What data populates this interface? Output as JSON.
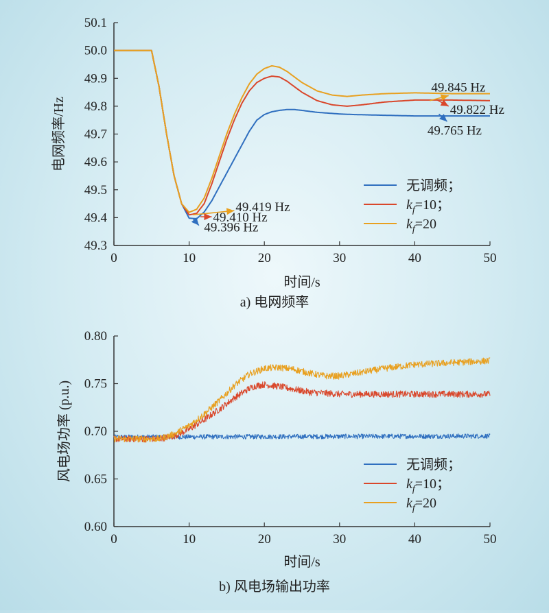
{
  "colors": {
    "no_reg": "#2f6fbf",
    "kf10": "#d9472b",
    "kf20": "#e8a020",
    "axis": "#333333"
  },
  "chart_data": [
    {
      "type": "line",
      "caption": "a) 电网频率",
      "xlabel": "时间/s",
      "ylabel": "电网频率/Hz",
      "xlim": [
        0,
        50
      ],
      "ylim": [
        49.3,
        50.1
      ],
      "xticks": [
        "0",
        "10",
        "20",
        "30",
        "40",
        "50"
      ],
      "yticks": [
        "49.3",
        "49.4",
        "49.5",
        "49.6",
        "49.7",
        "49.8",
        "49.9",
        "50.0",
        "50.1"
      ],
      "legend": "bottom-right",
      "series": [
        {
          "name": "无调频;",
          "legend_label": "无调频；",
          "color": "#2f6fbf",
          "x": [
            0,
            5,
            6,
            7,
            8,
            9,
            10,
            11,
            12,
            13,
            14,
            15,
            16,
            17,
            18,
            19,
            20,
            21,
            22,
            23,
            24,
            25,
            27,
            30,
            32,
            35,
            40,
            45,
            50
          ],
          "y": [
            50.0,
            50.0,
            49.87,
            49.7,
            49.55,
            49.45,
            49.398,
            49.396,
            49.42,
            49.46,
            49.51,
            49.56,
            49.61,
            49.66,
            49.71,
            49.75,
            49.77,
            49.78,
            49.785,
            49.788,
            49.788,
            49.785,
            49.778,
            49.772,
            49.77,
            49.768,
            49.765,
            49.765,
            49.765
          ]
        },
        {
          "name": "kf=10",
          "legend_label": "=10；",
          "color": "#d9472b",
          "x": [
            0,
            5,
            6,
            7,
            8,
            9,
            10,
            11,
            12,
            13,
            14,
            15,
            16,
            17,
            18,
            19,
            20,
            21,
            22,
            23,
            24,
            25,
            27,
            29,
            31,
            33,
            36,
            40,
            45,
            50
          ],
          "y": [
            50.0,
            50.0,
            49.87,
            49.7,
            49.55,
            49.45,
            49.41,
            49.415,
            49.45,
            49.52,
            49.6,
            49.68,
            49.75,
            49.81,
            49.855,
            49.885,
            49.9,
            49.908,
            49.905,
            49.89,
            49.87,
            49.85,
            49.82,
            49.805,
            49.8,
            49.805,
            49.815,
            49.822,
            49.822,
            49.82
          ]
        },
        {
          "name": "kf=20",
          "legend_label": "=20",
          "color": "#e8a020",
          "x": [
            0,
            5,
            6,
            7,
            8,
            9,
            10,
            11,
            12,
            13,
            14,
            15,
            16,
            17,
            18,
            19,
            20,
            21,
            22,
            23,
            24,
            25,
            27,
            29,
            31,
            33,
            36,
            40,
            45,
            50
          ],
          "y": [
            50.0,
            50.0,
            49.87,
            49.7,
            49.55,
            49.45,
            49.419,
            49.43,
            49.47,
            49.54,
            49.62,
            49.7,
            49.77,
            49.83,
            49.88,
            49.915,
            49.935,
            49.945,
            49.94,
            49.925,
            49.905,
            49.885,
            49.855,
            49.84,
            49.835,
            49.84,
            49.845,
            49.848,
            49.845,
            49.845
          ]
        }
      ],
      "annotations": [
        {
          "text": "49.419 Hz",
          "color": "#e8a020",
          "from": [
            10.5,
            49.41
          ],
          "to": [
            16,
            49.425
          ],
          "label_at": [
            16,
            49.44
          ]
        },
        {
          "text": "49.410 Hz",
          "color": "#d9472b",
          "from": [
            11.5,
            49.403
          ],
          "to": [
            13,
            49.403
          ],
          "label_at": [
            13,
            49.403
          ]
        },
        {
          "text": "49.396 Hz",
          "color": "#2f6fbf",
          "from": [
            10.5,
            49.397
          ],
          "to": [
            11.3,
            49.372
          ],
          "label_at": [
            11.8,
            49.368
          ]
        },
        {
          "text": "49.845 Hz",
          "color": "#e8a020",
          "from": [
            42,
            49.82
          ],
          "to": [
            44.5,
            49.838
          ],
          "label_at": [
            42,
            49.87
          ]
        },
        {
          "text": "49.822 Hz",
          "color": "#d9472b",
          "from": [
            43,
            49.822
          ],
          "to": [
            44.5,
            49.8
          ],
          "label_at": [
            44.5,
            49.79
          ]
        },
        {
          "text": "49.765 Hz",
          "color": "#2f6fbf",
          "from": [
            43.2,
            49.772
          ],
          "to": [
            44.3,
            49.745
          ],
          "label_at": [
            41.5,
            49.715
          ]
        }
      ]
    },
    {
      "type": "line",
      "caption": "b) 风电场输出功率",
      "xlabel": "时间/s",
      "ylabel": "风电场功率 (p.u.)",
      "xlim": [
        0,
        50
      ],
      "ylim": [
        0.6,
        0.8
      ],
      "xticks": [
        "0",
        "10",
        "20",
        "30",
        "40",
        "50"
      ],
      "yticks": [
        "0.60",
        "0.65",
        "0.70",
        "0.75",
        "0.80"
      ],
      "legend": "bottom-right",
      "series": [
        {
          "name": "无调频;",
          "legend_label": "无调频；",
          "color": "#2f6fbf",
          "noise": 0.0025,
          "x": [
            0,
            50
          ],
          "y": [
            0.694,
            0.695
          ]
        },
        {
          "name": "kf=10",
          "legend_label": "=10；",
          "color": "#d9472b",
          "noise": 0.0035,
          "x": [
            0,
            6,
            8,
            10,
            12,
            14,
            16,
            18,
            19,
            20,
            22,
            24,
            26,
            28,
            30,
            35,
            40,
            45,
            50
          ],
          "y": [
            0.692,
            0.692,
            0.695,
            0.702,
            0.712,
            0.723,
            0.735,
            0.745,
            0.748,
            0.749,
            0.747,
            0.744,
            0.741,
            0.74,
            0.739,
            0.739,
            0.739,
            0.739,
            0.739
          ]
        },
        {
          "name": "kf=20",
          "legend_label": "=20",
          "color": "#e8a020",
          "noise": 0.0035,
          "x": [
            0,
            6,
            8,
            10,
            12,
            14,
            16,
            18,
            20,
            22,
            24,
            26,
            28,
            30,
            33,
            36,
            40,
            45,
            50
          ],
          "y": [
            0.692,
            0.692,
            0.697,
            0.706,
            0.718,
            0.732,
            0.748,
            0.76,
            0.766,
            0.767,
            0.765,
            0.761,
            0.758,
            0.758,
            0.762,
            0.766,
            0.77,
            0.772,
            0.774
          ]
        }
      ]
    }
  ]
}
